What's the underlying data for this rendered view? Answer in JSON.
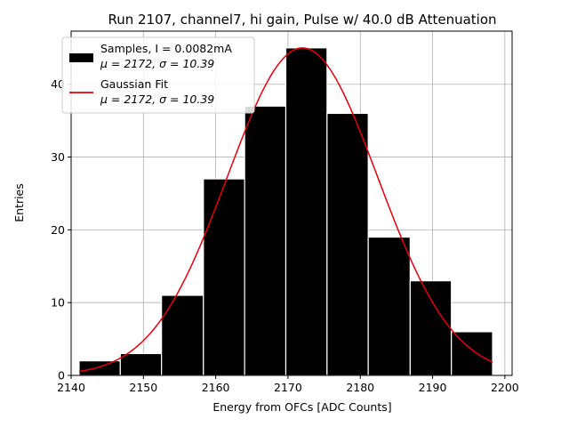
{
  "chart_data": {
    "type": "bar",
    "title": "Run 2107, channel7, hi gain, Pulse w/ 40.0 dB Attenuation",
    "xlabel": "Energy from OFCs [ADC Counts]",
    "ylabel": "Entries",
    "xlim": [
      2140,
      2201
    ],
    "ylim": [
      0,
      47.3
    ],
    "xticks": [
      2140,
      2150,
      2160,
      2170,
      2180,
      2190,
      2200
    ],
    "yticks": [
      0,
      10,
      20,
      30,
      40
    ],
    "grid": true,
    "legend_position": "top-left",
    "bins": [
      {
        "x0": 2141.1,
        "x1": 2146.8,
        "count": 2
      },
      {
        "x0": 2146.8,
        "x1": 2152.5,
        "count": 3
      },
      {
        "x0": 2152.5,
        "x1": 2158.3,
        "count": 11
      },
      {
        "x0": 2158.3,
        "x1": 2164.0,
        "count": 27
      },
      {
        "x0": 2164.0,
        "x1": 2169.7,
        "count": 37
      },
      {
        "x0": 2169.7,
        "x1": 2175.4,
        "count": 45
      },
      {
        "x0": 2175.4,
        "x1": 2181.1,
        "count": 36
      },
      {
        "x0": 2181.1,
        "x1": 2186.9,
        "count": 19
      },
      {
        "x0": 2186.9,
        "x1": 2192.6,
        "count": 13
      },
      {
        "x0": 2192.6,
        "x1": 2198.3,
        "count": 6
      }
    ],
    "series": [
      {
        "name": "Samples, I = 0.0082mA",
        "sublabel": "μ = 2172, σ = 10.39",
        "kind": "histogram",
        "color": "#000000"
      },
      {
        "name": "Gaussian Fit",
        "sublabel": "μ = 2172, σ = 10.39",
        "kind": "line",
        "color": "#e8000b",
        "fit": {
          "amplitude": 45,
          "mean": 2172,
          "sigma": 10.39,
          "x_range": [
            2141.1,
            2198.3
          ]
        }
      }
    ]
  }
}
